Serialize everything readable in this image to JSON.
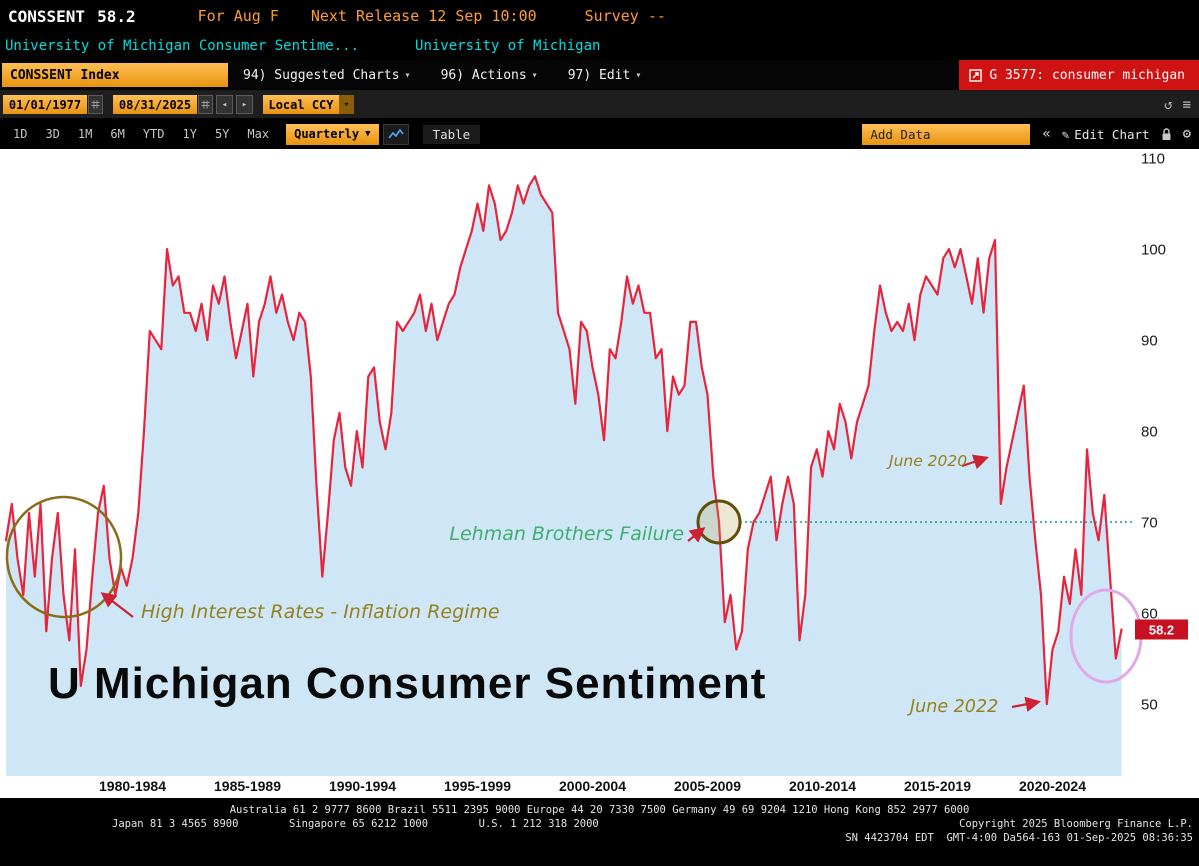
{
  "header": {
    "ticker": "CONSSENT",
    "last_value": "58.2",
    "period": "For Aug F",
    "next_release": "Next Release 12 Sep 10:00",
    "survey": "Survey --",
    "description": "University of Michigan Consumer Sentime...",
    "source": "University of Michigan",
    "security_field": "CONSSENT Index",
    "menus": {
      "suggested_charts": "94) Suggested Charts",
      "actions": "96) Actions",
      "edit": "97) Edit"
    },
    "launchpad": "G 3577: consumer michigan"
  },
  "controls": {
    "date_from": "01/01/1977",
    "date_to": "08/31/2025",
    "currency": "Local CCY",
    "ranges": [
      "1D",
      "3D",
      "1M",
      "6M",
      "YTD",
      "1Y",
      "5Y",
      "Max"
    ],
    "periodicity": "Quarterly",
    "table_label": "Table",
    "add_data_placeholder": "Add Data",
    "edit_chart_label": "Edit Chart"
  },
  "chart_data": {
    "type": "area",
    "title": "U Michigan Consumer Sentiment",
    "series_name": "CONSSENT Index",
    "x_start": 1977.0,
    "x_step_years": 0.25,
    "x_end": 2025.5,
    "ylim": [
      42,
      111
    ],
    "y_ticks": [
      110,
      100,
      90,
      80,
      70,
      60,
      50
    ],
    "x_labels": [
      "1980-1984",
      "1985-1989",
      "1990-1994",
      "1995-1999",
      "2000-2004",
      "2005-2009",
      "2010-2014",
      "2015-2019",
      "2020-2024"
    ],
    "last_value": 58.2,
    "line_color": "#e8243c",
    "fill_color": "#cfe6f7",
    "grid": false,
    "legend": "none",
    "reference_line": {
      "value": 70,
      "color": "#0a8f8f",
      "style": "dotted"
    },
    "values": [
      68,
      72,
      66,
      62,
      71,
      64,
      72,
      58,
      66,
      71,
      62,
      57,
      67,
      52,
      56,
      64,
      71,
      74,
      66,
      62,
      65,
      63,
      66,
      71,
      80,
      91,
      90,
      89,
      100,
      96,
      97,
      93,
      93,
      91,
      94,
      90,
      96,
      94,
      97,
      92,
      88,
      91,
      94,
      86,
      92,
      94,
      97,
      93,
      95,
      92,
      90,
      93,
      92,
      86,
      74,
      64,
      71,
      79,
      82,
      76,
      74,
      80,
      76,
      86,
      87,
      81,
      78,
      82,
      92,
      91,
      92,
      93,
      95,
      91,
      94,
      90,
      92,
      94,
      95,
      98,
      100,
      102,
      105,
      102,
      107,
      105,
      101,
      102,
      104,
      107,
      105,
      107,
      108,
      106,
      105,
      104,
      93,
      91,
      89,
      83,
      92,
      91,
      87,
      84,
      79,
      89,
      88,
      92,
      97,
      94,
      96,
      93,
      93,
      88,
      89,
      80,
      86,
      84,
      85,
      92,
      92,
      87,
      84,
      75,
      70,
      59,
      62,
      56,
      58,
      67,
      70,
      71,
      73,
      75,
      68,
      72,
      75,
      72,
      57,
      62,
      76,
      78,
      75,
      80,
      78,
      83,
      81,
      77,
      81,
      83,
      85,
      91,
      96,
      93,
      91,
      92,
      91,
      94,
      90,
      95,
      97,
      96,
      95,
      99,
      100,
      98,
      100,
      97,
      94,
      99,
      93,
      99,
      101,
      72,
      76,
      79,
      82,
      85,
      75,
      68,
      62,
      50,
      56,
      58,
      64,
      61,
      67,
      62,
      78,
      71,
      68,
      73,
      64,
      55,
      58.2
    ],
    "annotations": {
      "high_interest": "High Interest Rates - Inflation Regime",
      "lehman": "Lehman Brothers Failure",
      "june_2020": "June 2020",
      "june_2022": "June 2022"
    }
  },
  "footer": {
    "phones1": "Australia 61 2 9777 8600 Brazil 5511 2395 9000 Europe 44 20 7330 7500 Germany 49 69 9204 1210 Hong Kong 852 2977 6000",
    "phones2": "Japan 81 3 4565 8900        Singapore 65 6212 1000        U.S. 1 212 318 2000",
    "copyright": "Copyright 2025 Bloomberg Finance L.P.",
    "terminal_id": "SN 4423704 EDT  GMT-4:00 Da564-163 01-Sep-2025 08:36:35"
  }
}
